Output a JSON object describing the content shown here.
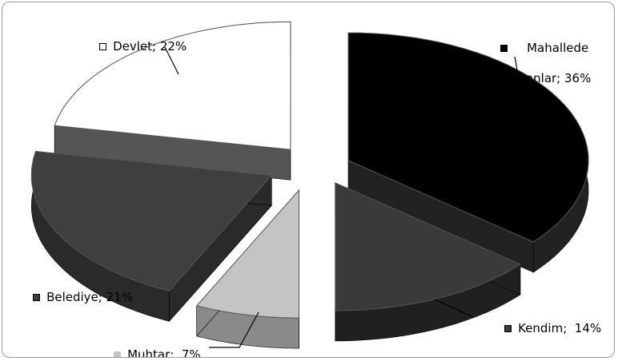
{
  "chart_data": {
    "type": "pie",
    "title": "",
    "slices": [
      {
        "label_html": "Mahallede\nyaşayanlar; 36%",
        "label": "Mahallede yaşayanlar",
        "value": 36,
        "text": "Mahallede yaşayanlar; 36%",
        "color": "#000000",
        "side": "#222222",
        "line1": "Mahallede",
        "line2": "yaşayanlar; 36%"
      },
      {
        "label": "Kendim",
        "value": 14,
        "text": "Kendim;  14%",
        "color": "#3a3a3a",
        "side": "#202020"
      },
      {
        "label": "Muhtar",
        "value": 7,
        "text": "Muhtar;  7%",
        "color": "#c4c4c4",
        "side": "#8a8a8a"
      },
      {
        "label": "Belediye",
        "value": 21,
        "text": "Belediye; 21%",
        "color": "#3f3f3f",
        "side": "#2a2a2a"
      },
      {
        "label": "Devlet",
        "value": 22,
        "text": "Devlet; 22%",
        "color": "#ffffff",
        "side": "#555555"
      }
    ],
    "legend": "none",
    "data_labels": "outside-with-leader-lines"
  }
}
